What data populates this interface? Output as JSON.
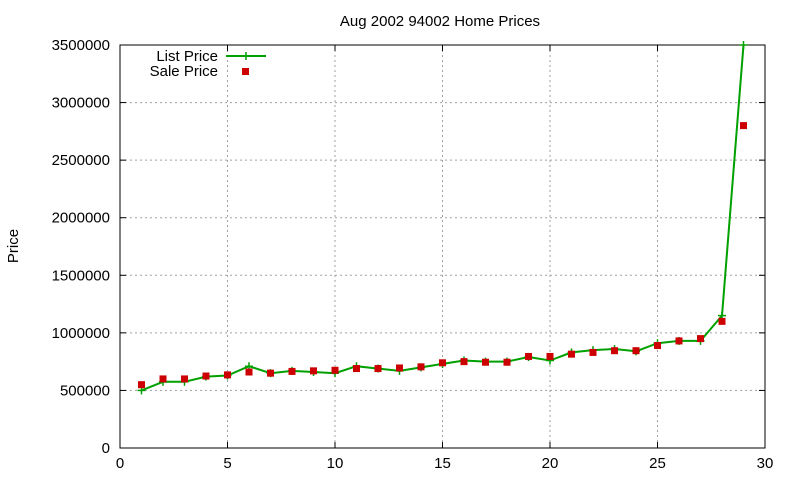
{
  "chart_data": {
    "type": "line",
    "title": "Aug 2002 94002 Home Prices",
    "xlabel": "",
    "ylabel": "Price",
    "xlim": [
      0,
      30
    ],
    "ylim": [
      0,
      3500000
    ],
    "xticks": [
      0,
      5,
      10,
      15,
      20,
      25,
      30
    ],
    "yticks": [
      0,
      500000,
      1000000,
      1500000,
      2000000,
      2500000,
      3000000,
      3500000
    ],
    "grid": true,
    "legend_position": "top-left",
    "x": [
      1,
      2,
      3,
      4,
      5,
      6,
      7,
      8,
      9,
      10,
      11,
      12,
      13,
      14,
      15,
      16,
      17,
      18,
      19,
      20,
      21,
      22,
      23,
      24,
      25,
      26,
      27,
      28,
      29
    ],
    "series": [
      {
        "name": "List Price",
        "style": "line-with-plus-markers",
        "color": "#00a000",
        "values": [
          500000,
          575000,
          575000,
          620000,
          630000,
          710000,
          650000,
          670000,
          660000,
          650000,
          710000,
          690000,
          670000,
          700000,
          730000,
          760000,
          750000,
          750000,
          790000,
          760000,
          830000,
          850000,
          860000,
          840000,
          910000,
          930000,
          930000,
          1150000,
          3500000
        ]
      },
      {
        "name": "Sale Price",
        "style": "square-markers",
        "color": "#cc0000",
        "values": [
          550000,
          600000,
          600000,
          625000,
          635000,
          660000,
          650000,
          665000,
          670000,
          675000,
          690000,
          690000,
          695000,
          705000,
          740000,
          750000,
          745000,
          745000,
          795000,
          795000,
          815000,
          830000,
          845000,
          845000,
          890000,
          930000,
          950000,
          1100000,
          2800000
        ]
      }
    ]
  }
}
